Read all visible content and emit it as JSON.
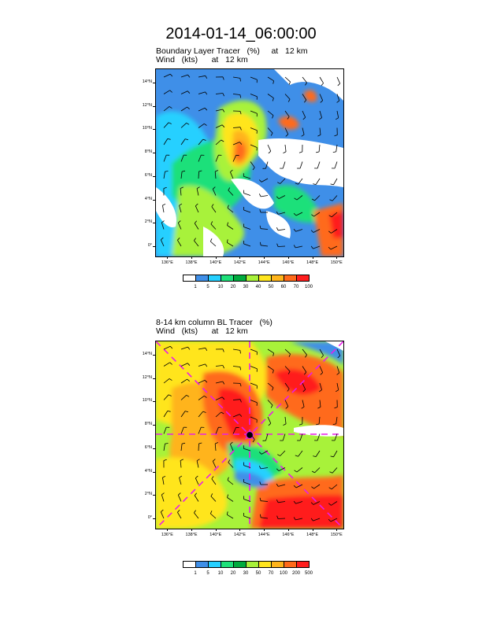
{
  "title": "2014-01-14_06:00:00",
  "panels": [
    {
      "line1": "Boundary Layer Tracer   (%)     at   12 km",
      "line2": "Wind   (kts)      at   12 km",
      "x_ticks": [
        "136°E",
        "138°E",
        "140°E",
        "142°E",
        "144°E",
        "146°E",
        "148°E",
        "150°E"
      ],
      "y_ticks": [
        "14°N",
        "12°N",
        "10°N",
        "8°N",
        "6°N",
        "4°N",
        "2°N",
        "0°"
      ],
      "colorbar_labels": [
        "1",
        "5",
        "10",
        "20",
        "30",
        "40",
        "50",
        "60",
        "70",
        "100"
      ],
      "colorbar_colors": [
        "#ffffff",
        "#3f8fe8",
        "#25d0ff",
        "#1ee07a",
        "#00ab3e",
        "#a8f23a",
        "#ffe51e",
        "#ffb41a",
        "#ff6a1a",
        "#ff1e1e"
      ]
    },
    {
      "line1": "8-14 km column BL Tracer   (%)",
      "line2": "Wind   (kts)      at   12 km",
      "x_ticks": [
        "136°E",
        "138°E",
        "140°E",
        "142°E",
        "144°E",
        "146°E",
        "148°E",
        "150°E"
      ],
      "y_ticks": [
        "14°N",
        "12°N",
        "10°N",
        "8°N",
        "6°N",
        "4°N",
        "2°N",
        "0°"
      ],
      "colorbar_labels": [
        "1",
        "5",
        "10",
        "20",
        "30",
        "50",
        "70",
        "100",
        "200",
        "500"
      ],
      "colorbar_colors": [
        "#ffffff",
        "#3f8fe8",
        "#25d0ff",
        "#1ee07a",
        "#00ab3e",
        "#a8f23a",
        "#ffe51e",
        "#ffb41a",
        "#ff6a1a",
        "#ff1e1e"
      ]
    }
  ],
  "map_extent": {
    "lon": [
      135,
      150.5
    ],
    "lat": [
      -0.8,
      15.2
    ]
  },
  "colors": {
    "cross_line": "#e81ee8",
    "storm_marker": "#000000"
  }
}
